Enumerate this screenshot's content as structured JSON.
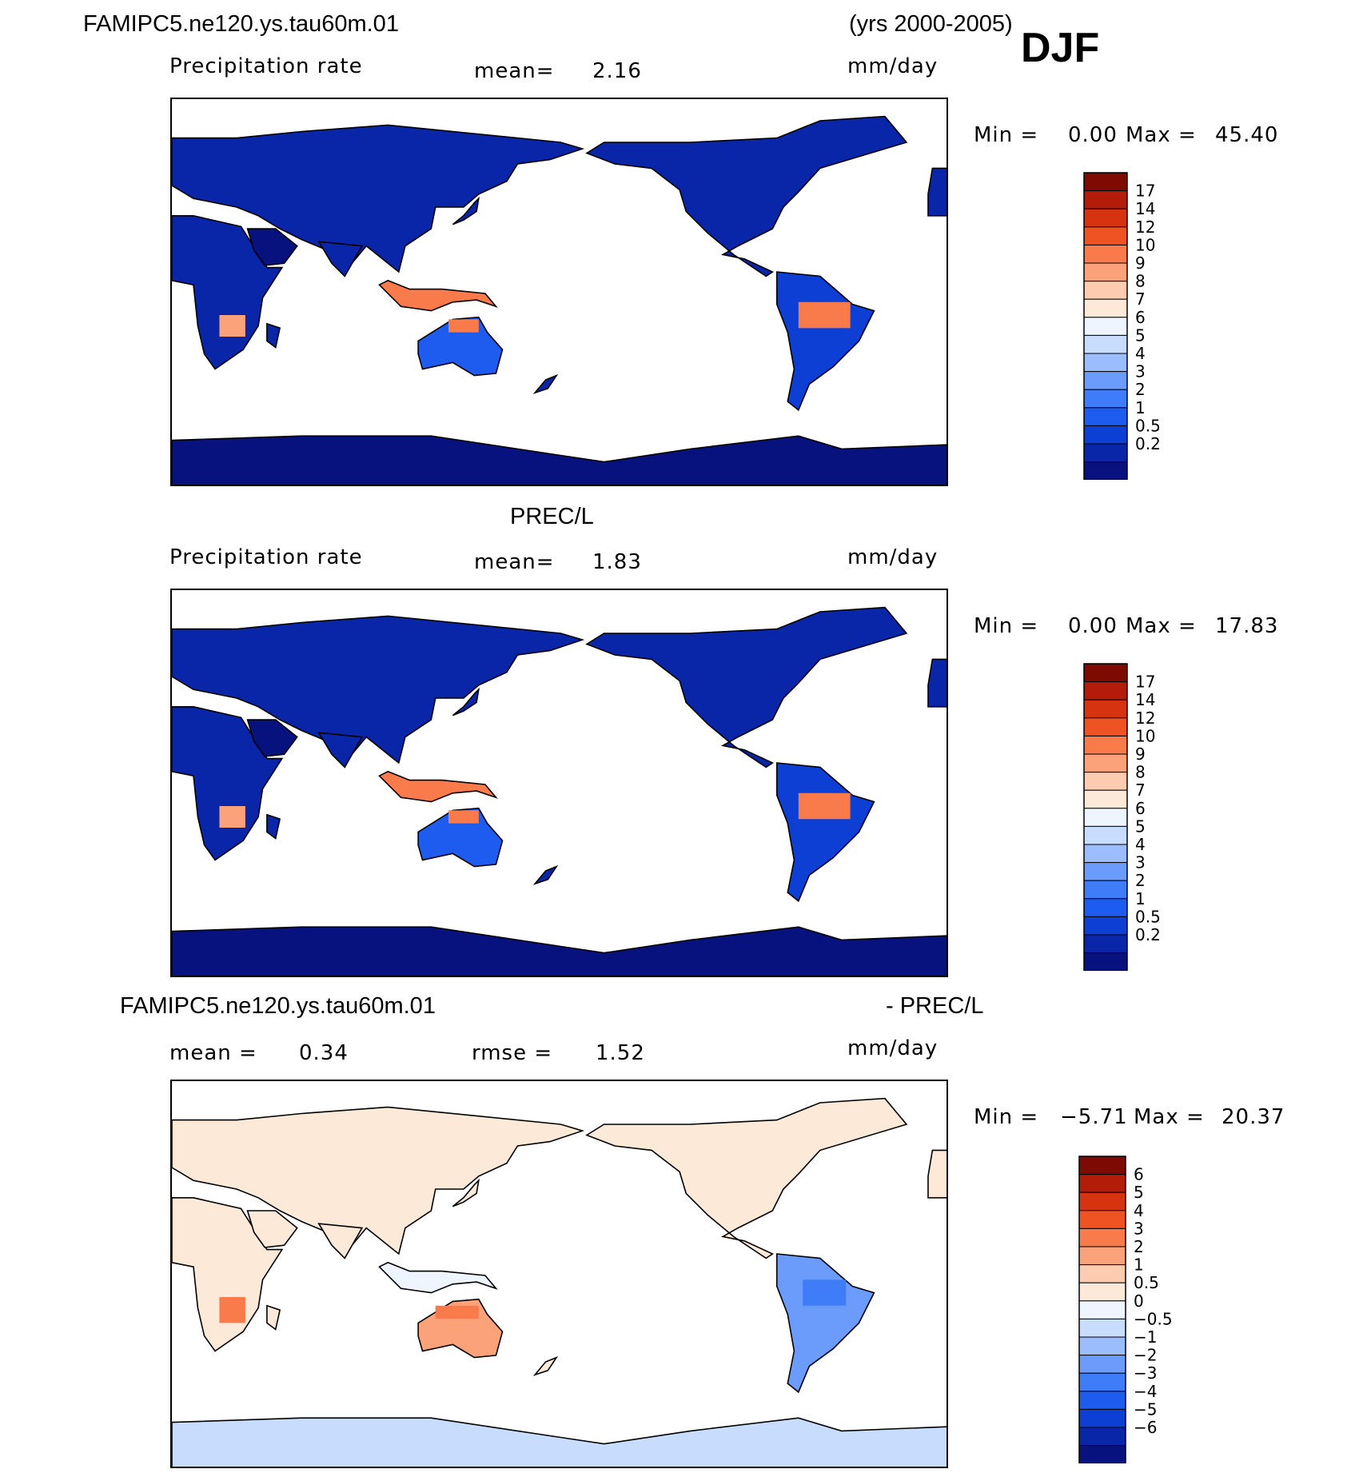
{
  "header": {
    "case_name": "FAMIPC5.ne120.ys.tau60m.01",
    "years": "(yrs 2000-2005)",
    "season": "DJF"
  },
  "colors": {
    "prec_scale": [
      "#08127e",
      "#0a26a8",
      "#0d3fd4",
      "#1e5cf0",
      "#3e7df7",
      "#6b9cfb",
      "#9bbcfd",
      "#c8dcfe",
      "#eef5fe",
      "#fde9d7",
      "#fdcbb0",
      "#fca27a",
      "#f97a4b",
      "#ef5324",
      "#d63410",
      "#b21c08",
      "#7e0a04"
    ],
    "diff_scale": [
      "#08127e",
      "#0a26a8",
      "#0d3fd4",
      "#1e5cf0",
      "#3e7df7",
      "#6b9cfb",
      "#9bbcfd",
      "#c8dcfe",
      "#eef5fe",
      "#fde9d7",
      "#fdcbb0",
      "#fca27a",
      "#f97a4b",
      "#ef5324",
      "#d63410",
      "#b21c08",
      "#7e0a04"
    ],
    "land_fill_wet": "#0a26a8"
  },
  "panels": [
    {
      "title": "",
      "variable": "Precipitation rate",
      "stat1": "mean=",
      "stat1_value": "2.16",
      "stat2": "",
      "stat2_value": "",
      "units": "mm/day",
      "min_label": "Min =",
      "min_value": "0.00",
      "max_label": "Max =",
      "max_value": "45.40"
    },
    {
      "title": "PREC/L",
      "variable": "Precipitation rate",
      "stat1": "mean=",
      "stat1_value": "1.83",
      "stat2": "",
      "stat2_value": "",
      "units": "mm/day",
      "min_label": "Min =",
      "min_value": "0.00",
      "max_label": "Max =",
      "max_value": "17.83"
    },
    {
      "title": "FAMIPC5.ne120.ys.tau60m.01",
      "title_right": "- PREC/L",
      "variable": "",
      "stat1": "mean =",
      "stat1_value": "0.34",
      "stat2": "rmse =",
      "stat2_value": "1.52",
      "units": "mm/day",
      "min_label": "Min =",
      "min_value": "−5.71",
      "max_label": "Max =",
      "max_value": "20.37"
    }
  ],
  "chart_data": [
    {
      "type": "heatmap",
      "title": "Precipitation rate",
      "units": "mm/day",
      "mean": 2.16,
      "min": 0.0,
      "max": 45.4,
      "colorbar_levels": [
        "17",
        "14",
        "12",
        "10",
        "9",
        "8",
        "7",
        "6",
        "5",
        "4",
        "3",
        "2",
        "1",
        "0.5",
        "0.2"
      ]
    },
    {
      "type": "heatmap",
      "title": "PREC/L",
      "units": "mm/day",
      "mean": 1.83,
      "min": 0.0,
      "max": 17.83,
      "colorbar_levels": [
        "17",
        "14",
        "12",
        "10",
        "9",
        "8",
        "7",
        "6",
        "5",
        "4",
        "3",
        "2",
        "1",
        "0.5",
        "0.2"
      ]
    },
    {
      "type": "heatmap",
      "title": "FAMIPC5.ne120.ys.tau60m.01 - PREC/L",
      "units": "mm/day",
      "mean": 0.34,
      "rmse": 1.52,
      "min": -5.71,
      "max": 20.37,
      "colorbar_levels": [
        "6",
        "5",
        "4",
        "3",
        "2",
        "1",
        "0.5",
        "0",
        "−0.5",
        "−1",
        "−2",
        "−3",
        "−4",
        "−5",
        "−6"
      ]
    }
  ]
}
